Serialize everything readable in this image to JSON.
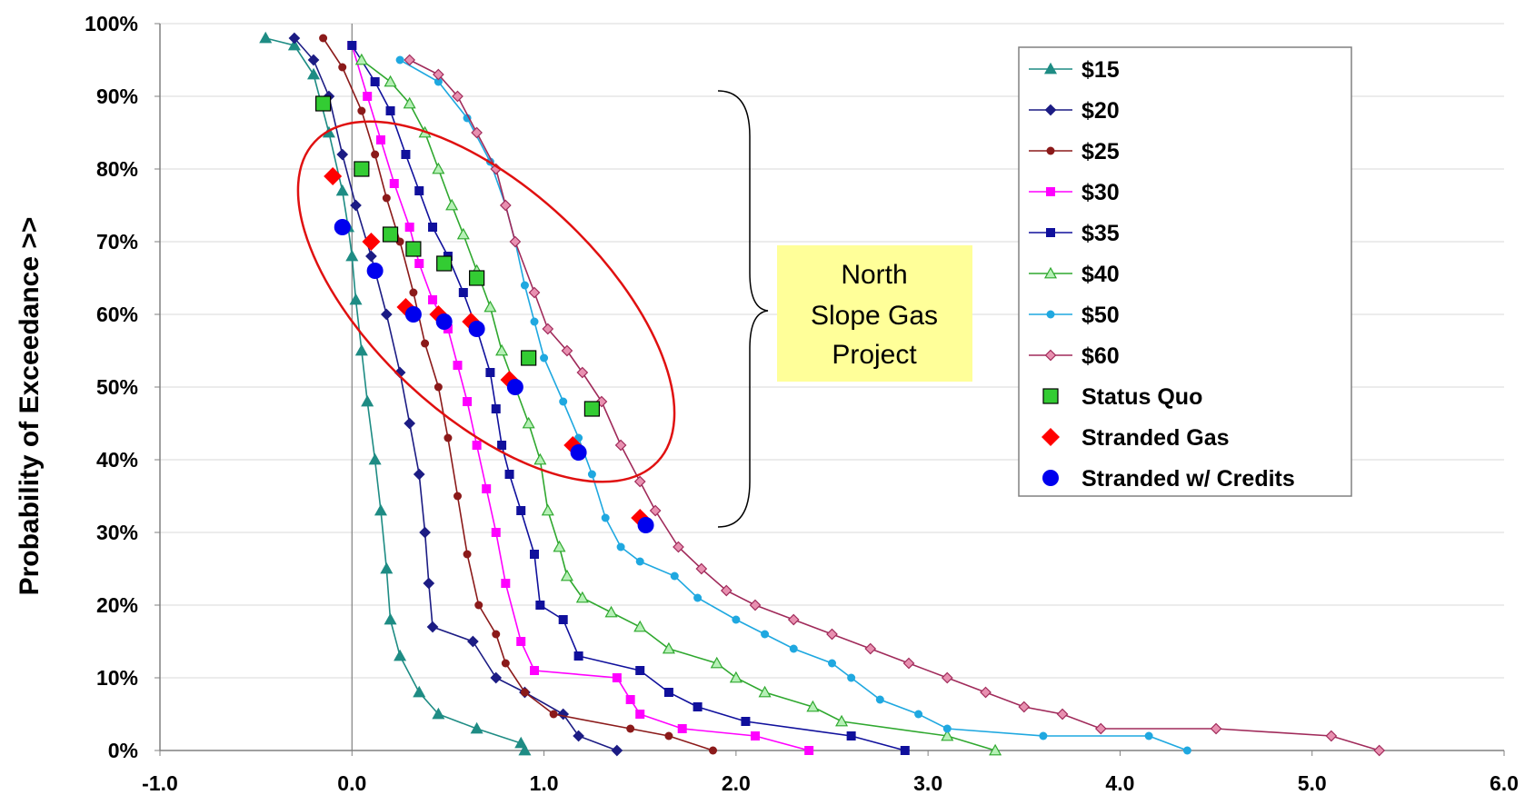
{
  "chart_data": {
    "type": "line",
    "title": "",
    "xlabel": "",
    "ylabel": "Probability of Exceedance >>",
    "xlim": [
      -1.0,
      6.0
    ],
    "ylim": [
      0,
      100
    ],
    "x_ticks": [
      "-1.0",
      "0.0",
      "1.0",
      "2.0",
      "3.0",
      "4.0",
      "5.0",
      "6.0"
    ],
    "y_ticks": [
      "0%",
      "10%",
      "20%",
      "30%",
      "40%",
      "50%",
      "60%",
      "70%",
      "80%",
      "90%",
      "100%"
    ],
    "legend_position": "top-right",
    "grid": true,
    "series": [
      {
        "name": "$15",
        "color": "#1e8c84",
        "marker": "triangle",
        "points": [
          [
            -0.45,
            98
          ],
          [
            -0.3,
            97
          ],
          [
            -0.2,
            93
          ],
          [
            -0.12,
            85
          ],
          [
            -0.05,
            77
          ],
          [
            -0.02,
            72
          ],
          [
            0.0,
            68
          ],
          [
            0.02,
            62
          ],
          [
            0.05,
            55
          ],
          [
            0.08,
            48
          ],
          [
            0.12,
            40
          ],
          [
            0.15,
            33
          ],
          [
            0.18,
            25
          ],
          [
            0.2,
            18
          ],
          [
            0.25,
            13
          ],
          [
            0.35,
            8
          ],
          [
            0.45,
            5
          ],
          [
            0.65,
            3
          ],
          [
            0.88,
            1
          ],
          [
            0.9,
            0
          ]
        ]
      },
      {
        "name": "$20",
        "color": "#1c1c84",
        "marker": "diamond",
        "points": [
          [
            -0.3,
            98
          ],
          [
            -0.2,
            95
          ],
          [
            -0.12,
            90
          ],
          [
            -0.05,
            82
          ],
          [
            0.02,
            75
          ],
          [
            0.1,
            68
          ],
          [
            0.18,
            60
          ],
          [
            0.25,
            52
          ],
          [
            0.3,
            45
          ],
          [
            0.35,
            38
          ],
          [
            0.38,
            30
          ],
          [
            0.4,
            23
          ],
          [
            0.42,
            17
          ],
          [
            0.63,
            15
          ],
          [
            0.75,
            10
          ],
          [
            0.9,
            8
          ],
          [
            1.1,
            5
          ],
          [
            1.18,
            2
          ],
          [
            1.38,
            0
          ]
        ]
      },
      {
        "name": "$25",
        "color": "#8b1a1a",
        "marker": "circle",
        "points": [
          [
            -0.15,
            98
          ],
          [
            -0.05,
            94
          ],
          [
            0.05,
            88
          ],
          [
            0.12,
            82
          ],
          [
            0.18,
            76
          ],
          [
            0.25,
            70
          ],
          [
            0.32,
            63
          ],
          [
            0.38,
            56
          ],
          [
            0.45,
            50
          ],
          [
            0.5,
            43
          ],
          [
            0.55,
            35
          ],
          [
            0.6,
            27
          ],
          [
            0.66,
            20
          ],
          [
            0.75,
            16
          ],
          [
            0.8,
            12
          ],
          [
            0.9,
            8
          ],
          [
            1.05,
            5
          ],
          [
            1.45,
            3
          ],
          [
            1.65,
            2
          ],
          [
            1.88,
            0
          ]
        ]
      },
      {
        "name": "$30",
        "color": "#ff00ff",
        "marker": "square",
        "points": [
          [
            0.0,
            97
          ],
          [
            0.08,
            90
          ],
          [
            0.15,
            84
          ],
          [
            0.22,
            78
          ],
          [
            0.3,
            72
          ],
          [
            0.35,
            67
          ],
          [
            0.42,
            62
          ],
          [
            0.5,
            58
          ],
          [
            0.55,
            53
          ],
          [
            0.6,
            48
          ],
          [
            0.65,
            42
          ],
          [
            0.7,
            36
          ],
          [
            0.75,
            30
          ],
          [
            0.8,
            23
          ],
          [
            0.88,
            15
          ],
          [
            0.95,
            11
          ],
          [
            1.38,
            10
          ],
          [
            1.45,
            7
          ],
          [
            1.5,
            5
          ],
          [
            1.72,
            3
          ],
          [
            2.1,
            2
          ],
          [
            2.38,
            0
          ]
        ]
      },
      {
        "name": "$35",
        "color": "#10109c",
        "marker": "square",
        "points": [
          [
            0.0,
            97
          ],
          [
            0.12,
            92
          ],
          [
            0.2,
            88
          ],
          [
            0.28,
            82
          ],
          [
            0.35,
            77
          ],
          [
            0.42,
            72
          ],
          [
            0.5,
            68
          ],
          [
            0.58,
            63
          ],
          [
            0.65,
            58
          ],
          [
            0.72,
            52
          ],
          [
            0.75,
            47
          ],
          [
            0.78,
            42
          ],
          [
            0.82,
            38
          ],
          [
            0.88,
            33
          ],
          [
            0.95,
            27
          ],
          [
            0.98,
            20
          ],
          [
            1.1,
            18
          ],
          [
            1.18,
            13
          ],
          [
            1.5,
            11
          ],
          [
            1.65,
            8
          ],
          [
            1.8,
            6
          ],
          [
            2.05,
            4
          ],
          [
            2.6,
            2
          ],
          [
            2.88,
            0
          ]
        ]
      },
      {
        "name": "$40",
        "color": "#2fa82f",
        "marker": "triangle",
        "points": [
          [
            0.05,
            95
          ],
          [
            0.2,
            92
          ],
          [
            0.3,
            89
          ],
          [
            0.38,
            85
          ],
          [
            0.45,
            80
          ],
          [
            0.52,
            75
          ],
          [
            0.58,
            71
          ],
          [
            0.65,
            66
          ],
          [
            0.72,
            61
          ],
          [
            0.78,
            55
          ],
          [
            0.85,
            50
          ],
          [
            0.92,
            45
          ],
          [
            0.98,
            40
          ],
          [
            1.02,
            33
          ],
          [
            1.08,
            28
          ],
          [
            1.12,
            24
          ],
          [
            1.2,
            21
          ],
          [
            1.35,
            19
          ],
          [
            1.5,
            17
          ],
          [
            1.65,
            14
          ],
          [
            1.9,
            12
          ],
          [
            2.0,
            10
          ],
          [
            2.15,
            8
          ],
          [
            2.4,
            6
          ],
          [
            2.55,
            4
          ],
          [
            3.1,
            2
          ],
          [
            3.35,
            0
          ]
        ]
      },
      {
        "name": "$50",
        "color": "#1fa8e0",
        "marker": "circle",
        "points": [
          [
            0.25,
            95
          ],
          [
            0.45,
            92
          ],
          [
            0.6,
            87
          ],
          [
            0.72,
            81
          ],
          [
            0.8,
            75
          ],
          [
            0.85,
            70
          ],
          [
            0.9,
            64
          ],
          [
            0.95,
            59
          ],
          [
            1.0,
            54
          ],
          [
            1.1,
            48
          ],
          [
            1.18,
            43
          ],
          [
            1.25,
            38
          ],
          [
            1.32,
            32
          ],
          [
            1.4,
            28
          ],
          [
            1.5,
            26
          ],
          [
            1.68,
            24
          ],
          [
            1.8,
            21
          ],
          [
            2.0,
            18
          ],
          [
            2.15,
            16
          ],
          [
            2.3,
            14
          ],
          [
            2.5,
            12
          ],
          [
            2.6,
            10
          ],
          [
            2.75,
            7
          ],
          [
            2.95,
            5
          ],
          [
            3.1,
            3
          ],
          [
            3.6,
            2
          ],
          [
            4.15,
            2
          ],
          [
            4.35,
            0
          ]
        ]
      },
      {
        "name": "$60",
        "color": "#a02a5a",
        "marker": "diamond",
        "points": [
          [
            0.3,
            95
          ],
          [
            0.45,
            93
          ],
          [
            0.55,
            90
          ],
          [
            0.65,
            85
          ],
          [
            0.75,
            80
          ],
          [
            0.8,
            75
          ],
          [
            0.85,
            70
          ],
          [
            0.95,
            63
          ],
          [
            1.02,
            58
          ],
          [
            1.12,
            55
          ],
          [
            1.2,
            52
          ],
          [
            1.3,
            48
          ],
          [
            1.4,
            42
          ],
          [
            1.5,
            37
          ],
          [
            1.58,
            33
          ],
          [
            1.7,
            28
          ],
          [
            1.82,
            25
          ],
          [
            1.95,
            22
          ],
          [
            2.1,
            20
          ],
          [
            2.3,
            18
          ],
          [
            2.5,
            16
          ],
          [
            2.7,
            14
          ],
          [
            2.9,
            12
          ],
          [
            3.1,
            10
          ],
          [
            3.3,
            8
          ],
          [
            3.5,
            6
          ],
          [
            3.7,
            5
          ],
          [
            3.9,
            3
          ],
          [
            4.5,
            3
          ],
          [
            5.1,
            2
          ],
          [
            5.35,
            0
          ]
        ]
      },
      {
        "name": "Status Quo",
        "color": "#33cc33",
        "marker": "big-square",
        "points": [
          [
            -0.15,
            89
          ],
          [
            0.05,
            80
          ],
          [
            0.2,
            71
          ],
          [
            0.32,
            69
          ],
          [
            0.48,
            67
          ],
          [
            0.65,
            65
          ],
          [
            0.92,
            54
          ],
          [
            1.25,
            47
          ]
        ]
      },
      {
        "name": "Stranded Gas",
        "color": "#ff0000",
        "marker": "big-diamond",
        "points": [
          [
            -0.1,
            79
          ],
          [
            0.1,
            70
          ],
          [
            0.28,
            61
          ],
          [
            0.45,
            60
          ],
          [
            0.62,
            59
          ],
          [
            0.82,
            51
          ],
          [
            1.15,
            42
          ],
          [
            1.5,
            32
          ]
        ]
      },
      {
        "name": "Stranded w/ Credits",
        "color": "#0000ee",
        "marker": "big-circle",
        "points": [
          [
            -0.05,
            72
          ],
          [
            0.12,
            66
          ],
          [
            0.32,
            60
          ],
          [
            0.48,
            59
          ],
          [
            0.65,
            58
          ],
          [
            0.85,
            50
          ],
          [
            1.18,
            41
          ],
          [
            1.53,
            31
          ]
        ]
      }
    ]
  },
  "annotation": {
    "lines": [
      "North",
      "Slope Gas",
      "Project"
    ],
    "box_color": "#ffff99",
    "ellipse_color": "#e01010"
  }
}
